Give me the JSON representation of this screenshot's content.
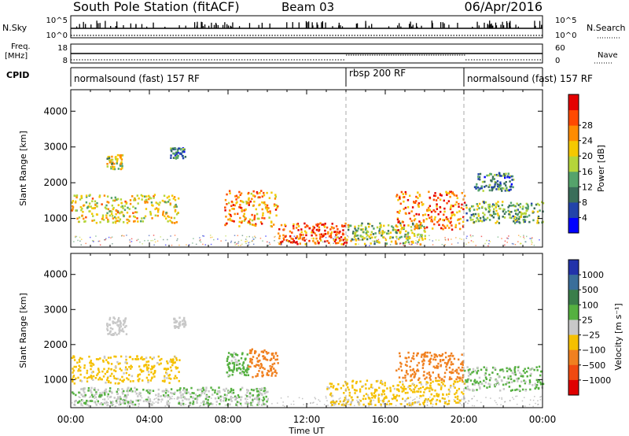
{
  "header": {
    "station": "South Pole Station (fitACF)",
    "beam": "Beam 03",
    "date": "06/Apr/2016"
  },
  "strip_labels": {
    "nsky": "N.Sky",
    "nsky_top": "10^5",
    "nsky_bottom": "10^0",
    "nsearch": "N.Search",
    "freq": "Freq.",
    "freq_unit": "[MHz]",
    "freq_top": "18",
    "freq_bottom": "8",
    "nave": "Nave",
    "nave_top": "60",
    "nave_bottom": "0",
    "cpid": "CPID"
  },
  "cpid_segments": [
    {
      "label": "normalsound (fast) 157 RF",
      "start_hour": 0,
      "end_hour": 14
    },
    {
      "label": "rbsp 200 RF",
      "start_hour": 14,
      "end_hour": 20
    },
    {
      "label": "normalsound (fast) 157 RF",
      "start_hour": 20,
      "end_hour": 24
    }
  ],
  "chart_data": [
    {
      "type": "heatmap",
      "title": "",
      "xlabel": "Time UT",
      "ylabel": "Slant Range [km]",
      "xlim": [
        0,
        24
      ],
      "ylim": [
        200,
        4600
      ],
      "x_ticks": [
        "00:00",
        "04:00",
        "08:00",
        "12:00",
        "16:00",
        "20:00",
        "00:00"
      ],
      "y_ticks": [
        1000,
        2000,
        3000,
        4000
      ],
      "colorbar": {
        "label": "Power [dB]",
        "ticks": [
          "4",
          "8",
          "12",
          "16",
          "20",
          "24",
          "28"
        ],
        "colors": [
          "#0000ff",
          "#2244aa",
          "#3a6e5a",
          "#55a36b",
          "#b5d53a",
          "#f5c800",
          "#ff8c00",
          "#ff4a00",
          "#e40000"
        ]
      },
      "echo_regions": [
        {
          "t0": 0.0,
          "t1": 5.5,
          "r0": 900,
          "r1": 1700,
          "value": 18
        },
        {
          "t0": 1.8,
          "t1": 2.6,
          "r0": 2400,
          "r1": 2800,
          "value": 16
        },
        {
          "t0": 5.0,
          "t1": 5.8,
          "r0": 2700,
          "r1": 3000,
          "value": 8
        },
        {
          "t0": 7.8,
          "t1": 10.5,
          "r0": 800,
          "r1": 1800,
          "value": 22
        },
        {
          "t0": 10.5,
          "t1": 14.0,
          "r0": 300,
          "r1": 900,
          "value": 26
        },
        {
          "t0": 14.0,
          "t1": 18.0,
          "r0": 300,
          "r1": 900,
          "value": 14
        },
        {
          "t0": 16.5,
          "t1": 20.0,
          "r0": 700,
          "r1": 1800,
          "value": 24
        },
        {
          "t0": 20.0,
          "t1": 24.0,
          "r0": 900,
          "r1": 1500,
          "value": 12
        },
        {
          "t0": 20.5,
          "t1": 22.5,
          "r0": 1800,
          "r1": 2300,
          "value": 8
        }
      ]
    },
    {
      "type": "heatmap",
      "title": "",
      "xlabel": "Time UT",
      "ylabel": "Slant Range [km]",
      "xlim": [
        0,
        24
      ],
      "ylim": [
        200,
        4600
      ],
      "x_ticks": [
        "00:00",
        "04:00",
        "08:00",
        "12:00",
        "16:00",
        "20:00",
        "00:00"
      ],
      "y_ticks": [
        1000,
        2000,
        3000,
        4000
      ],
      "colorbar": {
        "label": "Velocity [m s⁻¹]",
        "ticks": [
          "1000",
          "500",
          "100",
          "25",
          "−25",
          "−100",
          "−500",
          "−1000"
        ],
        "colors": [
          "#2233aa",
          "#3a6e9a",
          "#3a7e4a",
          "#55b040",
          "#c8c8c8",
          "#f5c000",
          "#f08020",
          "#f04a10",
          "#e00000"
        ]
      },
      "echo_regions": [
        {
          "t0": 0.0,
          "t1": 5.5,
          "r0": 900,
          "r1": 1700,
          "value": -200
        },
        {
          "t0": 1.8,
          "t1": 2.8,
          "r0": 2300,
          "r1": 2800,
          "value": 0
        },
        {
          "t0": 5.2,
          "t1": 5.8,
          "r0": 2500,
          "r1": 2800,
          "value": 0
        },
        {
          "t0": 7.8,
          "t1": 9.0,
          "r0": 1100,
          "r1": 1800,
          "value": 200
        },
        {
          "t0": 9.0,
          "t1": 10.5,
          "r0": 1100,
          "r1": 1900,
          "value": -500
        },
        {
          "t0": 0.0,
          "t1": 10.0,
          "r0": 300,
          "r1": 800,
          "value": 100
        },
        {
          "t0": 13.0,
          "t1": 20.0,
          "r0": 300,
          "r1": 1000,
          "value": -200
        },
        {
          "t0": 16.5,
          "t1": 20.0,
          "r0": 1000,
          "r1": 1800,
          "value": -500
        },
        {
          "t0": 20.0,
          "t1": 24.0,
          "r0": 700,
          "r1": 1400,
          "value": 150
        }
      ]
    }
  ]
}
